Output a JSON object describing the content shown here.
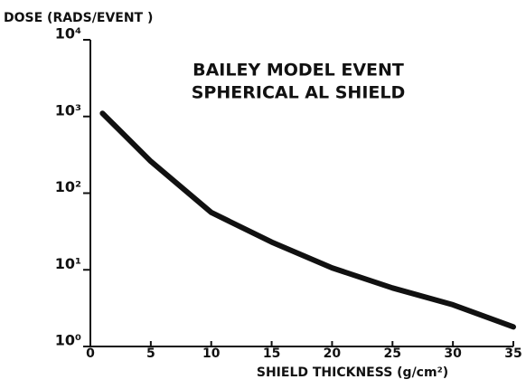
{
  "chart_data": {
    "type": "line",
    "ylabel": "DOSE (RADS/EVENT )",
    "xlabel": "SHIELD THICKNESS (g/cm²)",
    "annotations": [
      "BAILEY MODEL EVENT",
      "SPHERICAL AL SHIELD"
    ],
    "log_y": true,
    "x": [
      1,
      5,
      10,
      15,
      20,
      25,
      30,
      35
    ],
    "series": [
      {
        "name": "Dose",
        "color": "#111111",
        "values": [
          1100,
          260,
          56,
          23,
          10.6,
          5.8,
          3.5,
          1.8
        ]
      }
    ],
    "xlim": [
      0,
      35
    ],
    "xticks": [
      0,
      5,
      10,
      15,
      20,
      25,
      30,
      35
    ],
    "ylim": [
      1,
      10000
    ],
    "yticks": [
      {
        "value": 1,
        "label": "10⁰"
      },
      {
        "value": 10,
        "label": "10¹"
      },
      {
        "value": 100,
        "label": "10²"
      },
      {
        "value": 1000,
        "label": "10³"
      },
      {
        "value": 10000,
        "label": "10⁴"
      }
    ]
  }
}
